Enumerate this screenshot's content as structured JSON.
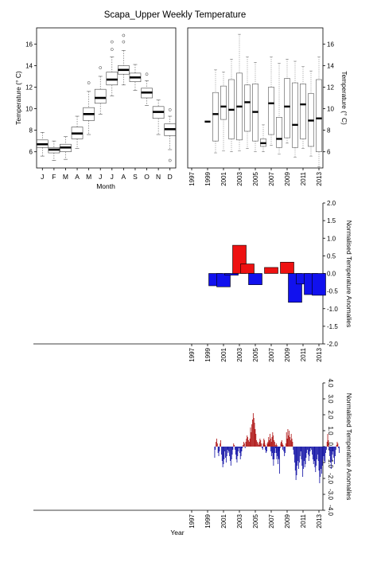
{
  "figure_title": "Scapa_Upper Weekly Temperature",
  "chart_data": [
    {
      "type": "box",
      "id": "monthly",
      "xlabel": "Month",
      "ylabel": "Temperature (° C)",
      "ylim": [
        4.5,
        17.5
      ],
      "yticks": [
        6,
        8,
        10,
        12,
        14,
        16
      ],
      "categories": [
        "J",
        "F",
        "M",
        "A",
        "M",
        "J",
        "J",
        "A",
        "S",
        "O",
        "N",
        "D"
      ],
      "boxes": [
        {
          "median": 6.7,
          "q1": 6.4,
          "q3": 7.1,
          "wlo": 5.6,
          "whi": 7.8,
          "outliers": []
        },
        {
          "median": 6.2,
          "q1": 5.9,
          "q3": 6.4,
          "wlo": 5.2,
          "whi": 7.0,
          "outliers": []
        },
        {
          "median": 6.4,
          "q1": 6.0,
          "q3": 6.7,
          "wlo": 5.3,
          "whi": 7.4,
          "outliers": []
        },
        {
          "median": 7.7,
          "q1": 7.2,
          "q3": 8.3,
          "wlo": 6.3,
          "whi": 9.3,
          "outliers": []
        },
        {
          "median": 9.5,
          "q1": 8.9,
          "q3": 10.1,
          "wlo": 7.6,
          "whi": 11.6,
          "outliers": [
            12.4
          ]
        },
        {
          "median": 11.0,
          "q1": 10.5,
          "q3": 11.8,
          "wlo": 9.5,
          "whi": 13.0,
          "outliers": [
            13.8
          ]
        },
        {
          "median": 12.7,
          "q1": 12.2,
          "q3": 13.4,
          "wlo": 11.2,
          "whi": 14.8,
          "outliers": [
            15.5,
            16.2
          ]
        },
        {
          "median": 13.6,
          "q1": 13.2,
          "q3": 14.0,
          "wlo": 12.2,
          "whi": 15.4,
          "outliers": [
            16.2,
            16.8
          ]
        },
        {
          "median": 12.9,
          "q1": 12.5,
          "q3": 13.3,
          "wlo": 11.7,
          "whi": 14.1,
          "outliers": []
        },
        {
          "median": 11.5,
          "q1": 11.0,
          "q3": 11.9,
          "wlo": 10.3,
          "whi": 12.6,
          "outliers": [
            13.2
          ]
        },
        {
          "median": 9.7,
          "q1": 9.1,
          "q3": 10.2,
          "wlo": 7.6,
          "whi": 10.8,
          "outliers": []
        },
        {
          "median": 8.1,
          "q1": 7.5,
          "q3": 8.6,
          "wlo": 6.2,
          "whi": 9.3,
          "outliers": [
            9.9,
            5.2
          ]
        }
      ]
    },
    {
      "type": "box",
      "id": "yearly",
      "ylabel": "Temperature (° C)",
      "ylim": [
        4.5,
        17.5
      ],
      "yticks": [
        6,
        8,
        10,
        12,
        14,
        16
      ],
      "xlim": [
        1996.5,
        2013.5
      ],
      "xticks": [
        1997,
        1999,
        2001,
        2003,
        2005,
        2007,
        2009,
        2011,
        2013
      ],
      "boxes": [
        {
          "year": 1999,
          "median": 8.8,
          "q1": 8.8,
          "q3": 8.8,
          "wlo": 8.8,
          "whi": 8.8
        },
        {
          "year": 2000,
          "median": 9.5,
          "q1": 7.0,
          "q3": 11.5,
          "wlo": 5.9,
          "whi": 13.6
        },
        {
          "year": 2001,
          "median": 10.2,
          "q1": 9.0,
          "q3": 12.1,
          "wlo": 6.1,
          "whi": 13.4
        },
        {
          "year": 2002,
          "median": 9.9,
          "q1": 7.2,
          "q3": 12.7,
          "wlo": 6.0,
          "whi": 14.6
        },
        {
          "year": 2003,
          "median": 10.2,
          "q1": 7.1,
          "q3": 13.3,
          "wlo": 6.1,
          "whi": 16.9
        },
        {
          "year": 2004,
          "median": 10.6,
          "q1": 7.9,
          "q3": 12.2,
          "wlo": 6.3,
          "whi": 14.8
        },
        {
          "year": 2005,
          "median": 9.7,
          "q1": 7.0,
          "q3": 12.3,
          "wlo": 6.0,
          "whi": 14.3
        },
        {
          "year": 2006,
          "median": 6.8,
          "q1": 6.5,
          "q3": 7.2,
          "wlo": 6.0,
          "whi": 8.5
        },
        {
          "year": 2007,
          "median": 10.5,
          "q1": 7.6,
          "q3": 12.0,
          "wlo": 6.6,
          "whi": 14.8
        },
        {
          "year": 2008,
          "median": 7.2,
          "q1": 6.4,
          "q3": 9.2,
          "wlo": 5.8,
          "whi": 14.2
        },
        {
          "year": 2009,
          "median": 10.2,
          "q1": 7.3,
          "q3": 12.8,
          "wlo": 6.8,
          "whi": 14.6
        },
        {
          "year": 2010,
          "median": 8.5,
          "q1": 6.4,
          "q3": 12.4,
          "wlo": 5.5,
          "whi": 14.4
        },
        {
          "year": 2011,
          "median": 10.4,
          "q1": 7.2,
          "q3": 12.3,
          "wlo": 6.3,
          "whi": 13.9
        },
        {
          "year": 2012,
          "median": 8.9,
          "q1": 6.5,
          "q3": 11.4,
          "wlo": 5.6,
          "whi": 13.5
        },
        {
          "year": 2013,
          "median": 9.1,
          "q1": 6.0,
          "q3": 12.7,
          "wlo": 4.6,
          "whi": 14.8
        }
      ]
    },
    {
      "type": "bar",
      "id": "annual_anomalies",
      "ylabel": "Normalised Temperature Anomalies",
      "ylim": [
        -2.0,
        2.0
      ],
      "yticks": [
        -2.0,
        -1.5,
        -1.0,
        -0.5,
        0.0,
        0.5,
        1.0,
        1.5,
        2.0
      ],
      "ytick_labels": [
        "-2.0",
        "-1.5",
        "-1.0",
        "-0.5",
        "0.0",
        "0.5",
        "1.0",
        "1.5",
        "2.0"
      ],
      "xlim": [
        1996.5,
        2013.5
      ],
      "xticks": [
        1997,
        1999,
        2001,
        2003,
        2005,
        2007,
        2009,
        2011,
        2013
      ],
      "colors": {
        "positive": "#ee1111",
        "negative": "#1111ee"
      },
      "categories": [
        2000,
        2001,
        2002,
        2003,
        2004,
        2005,
        2007,
        2009,
        2010,
        2011,
        2012,
        2013
      ],
      "values": [
        -0.35,
        -0.38,
        -0.05,
        0.8,
        0.27,
        -0.32,
        0.17,
        0.32,
        -0.82,
        -0.3,
        -0.6,
        -0.62
      ]
    },
    {
      "type": "bar",
      "id": "weekly_anomalies",
      "xlabel": "Year",
      "ylabel": "Normalised Temperature Anomalies",
      "ylim": [
        -4.0,
        4.0
      ],
      "yticks": [
        -4.0,
        -3.0,
        -2.0,
        -1.0,
        0.0,
        1.0,
        2.0,
        3.0,
        4.0
      ],
      "ytick_labels": [
        "-4.0",
        "-3.0",
        "-2.0",
        "-1.0",
        "0.0",
        "1.0",
        "2.0",
        "3.0",
        "4.0"
      ],
      "xlim": [
        1996.5,
        2013.5
      ],
      "xticks": [
        1997,
        1999,
        2001,
        2003,
        2005,
        2007,
        2009,
        2011,
        2013
      ],
      "colors": {
        "positive": "#b01818",
        "negative": "#1818a8"
      },
      "bar_width_years": 0.085,
      "segments": [
        {
          "start": 1999.85,
          "values": [
            -0.7,
            -0.2,
            0.3,
            0.5,
            0.2,
            -0.4,
            -0.6,
            -0.3,
            0.2,
            0.4,
            -0.5,
            -0.9,
            -1.3,
            -1.1,
            -0.8,
            -0.3,
            -0.7,
            -1.0,
            -0.6,
            -0.2,
            -0.4,
            -0.3,
            -0.6,
            -0.9,
            -1.2,
            -0.8,
            -0.5,
            -0.2,
            0.2,
            0.1,
            -0.2,
            -0.5,
            -0.8,
            -1.0,
            -0.6,
            -0.3,
            -0.1,
            -0.4,
            -0.8,
            -0.6,
            -0.3,
            -0.1,
            0.1,
            0.3,
            0.2,
            -0.1,
            0.3,
            0.5,
            0.7,
            0.6,
            0.4,
            0.3,
            0.5,
            1.2,
            0.9,
            1.4,
            1.7,
            2.1,
            1.8,
            1.5,
            1.1,
            0.8,
            0.4,
            0.3,
            0.2,
            0.1,
            0.3,
            0.5,
            0.4,
            0.2,
            -0.1,
            -0.2,
            0.1,
            0.3,
            0.2,
            -0.2,
            -0.4,
            -0.3,
            0.1,
            0.2,
            0.3,
            0.4,
            0.2,
            -0.3,
            -0.6,
            -0.4,
            -0.8,
            -1.2,
            -0.8,
            -0.4,
            -0.1,
            0.2,
            0.1,
            -0.3,
            -0.5,
            -0.8,
            -1.7
          ]
        },
        {
          "start": 2005.95,
          "values": [
            0.2,
            0.5,
            0.4,
            0.1,
            -0.3,
            -0.1,
            0.2,
            0.3,
            0.6,
            0.4,
            0.8,
            0.5,
            0.3,
            0.6,
            0.9,
            0.7,
            0.4,
            0.3,
            0.1,
            -0.4,
            -0.8,
            -0.6,
            -1.1,
            -0.7,
            -0.3,
            -0.1,
            0.2,
            0.3,
            0.1,
            -0.2
          ]
        },
        {
          "start": 2008.2,
          "values": [
            0.3,
            0.4,
            0.2,
            0.1,
            -0.3,
            -0.6,
            -0.4,
            0.2,
            0.9,
            0.5,
            1.1,
            0.7,
            1.0,
            0.6,
            0.4,
            0.8,
            0.5,
            0.3,
            -0.2,
            -0.5,
            -1.0,
            -1.5,
            -2.1,
            -1.8,
            -1.2,
            -0.9,
            -1.4,
            -1.0,
            -0.6,
            -0.3,
            -0.8,
            -1.2,
            -1.9,
            -1.4,
            -0.9,
            -1.3,
            -1.1,
            -0.7,
            -0.4,
            -0.2,
            -0.5,
            -0.9,
            -0.6,
            -0.3,
            -0.1,
            -0.2,
            -0.5,
            -0.8,
            -1.1,
            -0.9,
            -1.3,
            -1.6,
            -1.2,
            -0.8,
            -0.5,
            -0.9,
            -1.5,
            -2.3,
            -1.9,
            -1.4,
            -1.7,
            -1.2,
            -0.8,
            -0.6,
            -0.9,
            -1.0,
            -0.4,
            -0.2,
            0.3,
            0.8,
            0.4,
            -0.2,
            -0.6,
            -1.0,
            -1.4,
            -0.9,
            -0.5,
            -0.3,
            -0.7,
            -1.1,
            -0.6,
            -0.2,
            0.1,
            0.3,
            0.2,
            -0.1,
            -0.4
          ]
        }
      ]
    }
  ]
}
